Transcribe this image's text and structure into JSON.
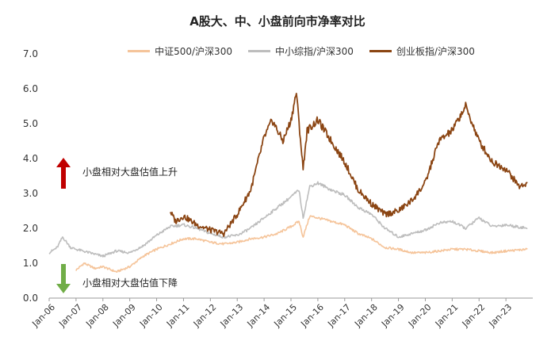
{
  "chart_data": {
    "type": "line",
    "title": "A股大、中、小盘前向市净率对比",
    "xlabel": "",
    "ylabel": "",
    "ylim": [
      0,
      7
    ],
    "yticks": [
      "0.0",
      "1.0",
      "2.0",
      "3.0",
      "4.0",
      "5.0",
      "6.0",
      "7.0"
    ],
    "xticks": [
      "Jan-06",
      "Jan-07",
      "Jan-08",
      "Jan-09",
      "Jan-10",
      "Jan-11",
      "Jan-12",
      "Jan-13",
      "Jan-14",
      "Jan-15",
      "Jan-16",
      "Jan-17",
      "Jan-18",
      "Jan-19",
      "Jan-20",
      "Jan-21",
      "Jan-22",
      "Jan-23"
    ],
    "grid": false,
    "legend_position": "top",
    "series": [
      {
        "name": "中证500/沪深300",
        "color": "#F5C49A",
        "points": [
          [
            2007.0,
            0.8
          ],
          [
            2007.3,
            1.0
          ],
          [
            2007.7,
            0.85
          ],
          [
            2008.0,
            0.9
          ],
          [
            2008.5,
            0.75
          ],
          [
            2009.0,
            0.9
          ],
          [
            2009.5,
            1.2
          ],
          [
            2010.0,
            1.4
          ],
          [
            2010.5,
            1.55
          ],
          [
            2011.0,
            1.7
          ],
          [
            2011.5,
            1.7
          ],
          [
            2012.0,
            1.6
          ],
          [
            2012.5,
            1.55
          ],
          [
            2013.0,
            1.6
          ],
          [
            2013.5,
            1.7
          ],
          [
            2014.0,
            1.75
          ],
          [
            2014.5,
            1.85
          ],
          [
            2015.0,
            2.05
          ],
          [
            2015.3,
            2.2
          ],
          [
            2015.45,
            1.75
          ],
          [
            2015.7,
            2.35
          ],
          [
            2016.0,
            2.3
          ],
          [
            2016.5,
            2.2
          ],
          [
            2017.0,
            2.1
          ],
          [
            2017.5,
            1.85
          ],
          [
            2018.0,
            1.7
          ],
          [
            2018.5,
            1.45
          ],
          [
            2019.0,
            1.4
          ],
          [
            2019.5,
            1.3
          ],
          [
            2020.0,
            1.3
          ],
          [
            2020.5,
            1.35
          ],
          [
            2021.0,
            1.4
          ],
          [
            2021.5,
            1.4
          ],
          [
            2022.0,
            1.35
          ],
          [
            2022.5,
            1.3
          ],
          [
            2023.0,
            1.35
          ],
          [
            2023.8,
            1.4
          ]
        ]
      },
      {
        "name": "中小综指/沪深300",
        "color": "#BDBDBD",
        "points": [
          [
            2006.0,
            1.3
          ],
          [
            2006.3,
            1.45
          ],
          [
            2006.5,
            1.75
          ],
          [
            2006.8,
            1.45
          ],
          [
            2007.0,
            1.4
          ],
          [
            2007.5,
            1.3
          ],
          [
            2008.0,
            1.2
          ],
          [
            2008.5,
            1.35
          ],
          [
            2009.0,
            1.3
          ],
          [
            2009.5,
            1.5
          ],
          [
            2010.0,
            1.8
          ],
          [
            2010.5,
            2.05
          ],
          [
            2011.0,
            2.1
          ],
          [
            2011.5,
            2.0
          ],
          [
            2012.0,
            1.85
          ],
          [
            2012.5,
            1.75
          ],
          [
            2013.0,
            1.8
          ],
          [
            2013.5,
            2.0
          ],
          [
            2014.0,
            2.3
          ],
          [
            2014.5,
            2.6
          ],
          [
            2015.0,
            2.9
          ],
          [
            2015.3,
            3.1
          ],
          [
            2015.45,
            2.3
          ],
          [
            2015.7,
            3.2
          ],
          [
            2016.0,
            3.3
          ],
          [
            2016.5,
            3.1
          ],
          [
            2017.0,
            2.95
          ],
          [
            2017.5,
            2.6
          ],
          [
            2018.0,
            2.4
          ],
          [
            2018.5,
            2.0
          ],
          [
            2019.0,
            1.75
          ],
          [
            2019.5,
            1.85
          ],
          [
            2020.0,
            1.95
          ],
          [
            2020.5,
            2.15
          ],
          [
            2021.0,
            2.2
          ],
          [
            2021.5,
            2.0
          ],
          [
            2022.0,
            2.3
          ],
          [
            2022.5,
            2.05
          ],
          [
            2023.0,
            2.1
          ],
          [
            2023.8,
            2.0
          ]
        ]
      },
      {
        "name": "创业板指/沪深300",
        "color": "#8B4513",
        "points": [
          [
            2010.5,
            2.5
          ],
          [
            2010.7,
            2.2
          ],
          [
            2011.0,
            2.35
          ],
          [
            2011.5,
            2.1
          ],
          [
            2012.0,
            1.95
          ],
          [
            2012.5,
            1.85
          ],
          [
            2013.0,
            2.4
          ],
          [
            2013.5,
            3.1
          ],
          [
            2014.0,
            4.6
          ],
          [
            2014.3,
            5.1
          ],
          [
            2014.7,
            4.5
          ],
          [
            2015.0,
            5.1
          ],
          [
            2015.2,
            5.9
          ],
          [
            2015.45,
            3.7
          ],
          [
            2015.6,
            4.8
          ],
          [
            2016.0,
            5.1
          ],
          [
            2016.5,
            4.5
          ],
          [
            2017.0,
            3.9
          ],
          [
            2017.5,
            3.1
          ],
          [
            2018.0,
            2.7
          ],
          [
            2018.5,
            2.4
          ],
          [
            2019.0,
            2.5
          ],
          [
            2019.5,
            2.8
          ],
          [
            2020.0,
            3.3
          ],
          [
            2020.5,
            4.5
          ],
          [
            2021.0,
            4.8
          ],
          [
            2021.5,
            5.5
          ],
          [
            2022.0,
            4.5
          ],
          [
            2022.5,
            3.9
          ],
          [
            2023.0,
            3.7
          ],
          [
            2023.5,
            3.2
          ],
          [
            2023.8,
            3.3
          ]
        ]
      }
    ],
    "annotations": [
      {
        "text": "小盘相对大盘估值上升",
        "arrow": "up",
        "arrow_color": "#C00000"
      },
      {
        "text": "小盘相对大盘估值下降",
        "arrow": "down",
        "arrow_color": "#70AD47"
      }
    ]
  }
}
